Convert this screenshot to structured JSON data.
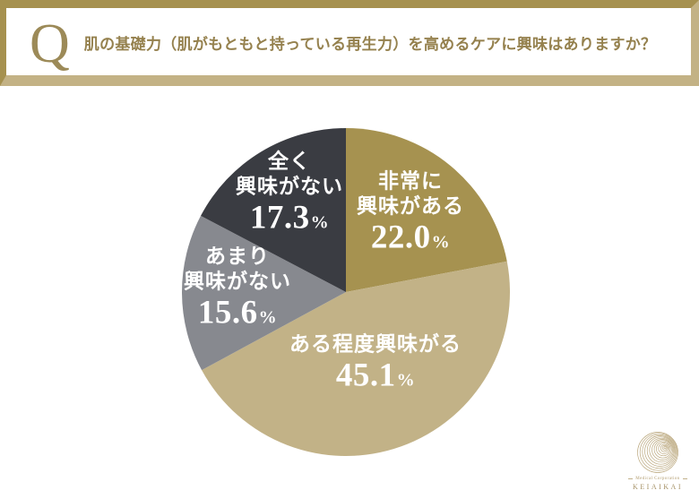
{
  "header": {
    "q_mark": "Q",
    "question": "肌の基礎力（肌がもともと持っている再生力）を高めるケアに興味はありますか？"
  },
  "chart_data": {
    "type": "pie",
    "title": "肌の基礎力（肌がもともと持っている再生力）を高めるケアに興味はありますか？",
    "unit": "%",
    "start_angle_deg": 0,
    "direction": "clockwise",
    "percent_symbol": "%",
    "segments": [
      {
        "label": "非常に興味がある",
        "lines": [
          "非常に",
          "興味がある"
        ],
        "value": 22.0,
        "value_text": "22.0",
        "color": "#a69250"
      },
      {
        "label": "ある程度興味がる",
        "lines": [
          "ある程度興味がる"
        ],
        "value": 45.1,
        "value_text": "45.1",
        "color": "#c2b287"
      },
      {
        "label": "あまり興味がない",
        "lines": [
          "あまり",
          "興味がない"
        ],
        "value": 15.6,
        "value_text": "15.6",
        "color": "#87898f"
      },
      {
        "label": "全く興味がない",
        "lines": [
          "全く",
          "興味がない"
        ],
        "value": 17.3,
        "value_text": "17.3",
        "color": "#3a3c42"
      }
    ]
  },
  "logo": {
    "small_text": "Medical Corporation",
    "name": "KEIAIKAI"
  },
  "colors": {
    "frame_dark_gold": "#a6914f",
    "frame_light_gold": "#c3b285",
    "question_text": "#95814e",
    "label_text": "#ffffff",
    "logo_gold": "#b49f72",
    "background": "#ffffff"
  }
}
